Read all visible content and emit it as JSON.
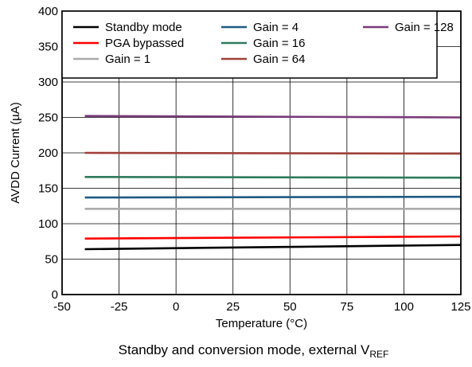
{
  "chart_data": {
    "type": "line",
    "title": "Standby and conversion mode, external V",
    "title_subscript": "REF",
    "xlabel": "Temperature (°C)",
    "ylabel": "AVDD Current (µA)",
    "xlim": [
      -50,
      125
    ],
    "ylim": [
      0,
      400
    ],
    "xticks": [
      -50,
      -25,
      0,
      25,
      50,
      75,
      100,
      125
    ],
    "yticks": [
      0,
      50,
      100,
      150,
      200,
      250,
      300,
      350,
      400
    ],
    "grid": true,
    "legend_position": "top-left",
    "series": [
      {
        "name": "Standby mode",
        "color": "#000000",
        "x": [
          -40,
          125
        ],
        "y": [
          64,
          70
        ]
      },
      {
        "name": "PGA bypassed",
        "color": "#ff0000",
        "x": [
          -40,
          125
        ],
        "y": [
          79,
          82
        ]
      },
      {
        "name": "Gain = 1",
        "color": "#aaaaaa",
        "x": [
          -40,
          125
        ],
        "y": [
          121,
          121
        ]
      },
      {
        "name": "Gain = 4",
        "color": "#1f5a82",
        "x": [
          -40,
          125
        ],
        "y": [
          137,
          138
        ]
      },
      {
        "name": "Gain = 16",
        "color": "#2e7a5c",
        "x": [
          -40,
          125
        ],
        "y": [
          166,
          165
        ]
      },
      {
        "name": "Gain = 64",
        "color": "#a0403a",
        "x": [
          -40,
          125
        ],
        "y": [
          200,
          199
        ]
      },
      {
        "name": "Gain = 128",
        "color": "#7a3a7a",
        "x": [
          -40,
          125
        ],
        "y": [
          252,
          250
        ]
      }
    ]
  }
}
